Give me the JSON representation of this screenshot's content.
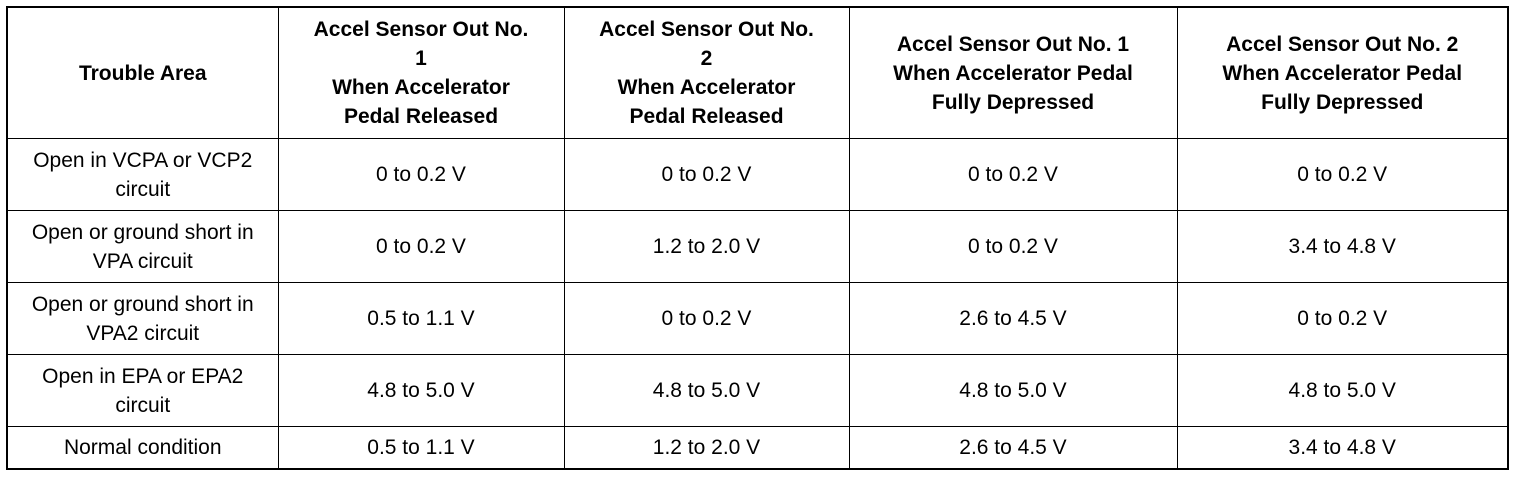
{
  "table": {
    "columns": [
      [
        "Trouble Area"
      ],
      [
        "Accel Sensor Out No.",
        "1",
        "When Accelerator",
        "Pedal Released"
      ],
      [
        "Accel Sensor Out No.",
        "2",
        "When Accelerator",
        "Pedal Released"
      ],
      [
        "Accel Sensor Out No. 1",
        "When Accelerator Pedal",
        "Fully Depressed"
      ],
      [
        "Accel Sensor Out No. 2",
        "When Accelerator Pedal",
        "Fully Depressed"
      ]
    ],
    "rows": [
      [
        "Open in VCPA or VCP2 circuit",
        "0 to 0.2 V",
        "0 to 0.2 V",
        "0 to 0.2 V",
        "0 to 0.2 V"
      ],
      [
        "Open or ground short in VPA circuit",
        "0 to 0.2 V",
        "1.2 to 2.0 V",
        "0 to 0.2 V",
        "3.4 to 4.8 V"
      ],
      [
        "Open or ground short in VPA2 circuit",
        "0.5 to 1.1 V",
        "0 to 0.2 V",
        "2.6 to 4.5 V",
        "0 to 0.2 V"
      ],
      [
        "Open in EPA or EPA2 circuit",
        "4.8 to 5.0 V",
        "4.8 to 5.0 V",
        "4.8 to 5.0 V",
        "4.8 to 5.0 V"
      ],
      [
        "Normal condition",
        "0.5 to 1.1 V",
        "1.2 to 2.0 V",
        "2.6 to 4.5 V",
        "3.4 to 4.8 V"
      ]
    ]
  }
}
